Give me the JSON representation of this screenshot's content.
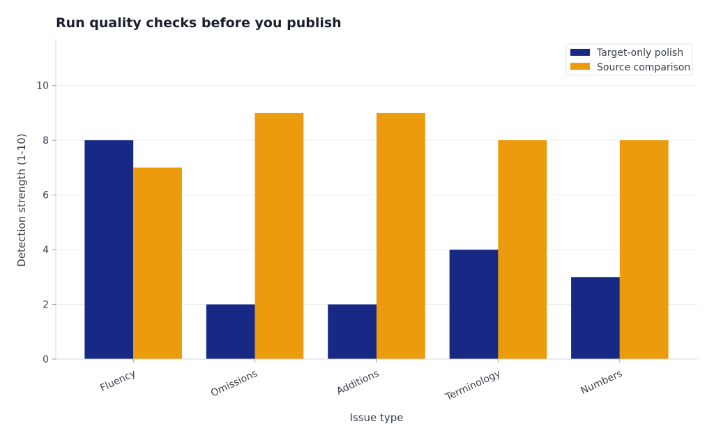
{
  "chart_data": {
    "type": "bar",
    "title": "Run quality checks before you publish",
    "xlabel": "Issue type",
    "ylabel": "Detection strength (1-10)",
    "categories": [
      "Fluency",
      "Omissions",
      "Additions",
      "Terminology",
      "Numbers"
    ],
    "series": [
      {
        "name": "Target-only polish",
        "color": "#172984",
        "values": [
          8,
          2,
          2,
          4,
          3
        ]
      },
      {
        "name": "Source comparison",
        "color": "#eb9b0c",
        "values": [
          7,
          9,
          9,
          8,
          8
        ]
      }
    ],
    "ylim": [
      0,
      11.7
    ],
    "yticks": [
      0,
      2,
      4,
      6,
      8,
      10
    ],
    "grid": true,
    "legend": "top-right"
  }
}
